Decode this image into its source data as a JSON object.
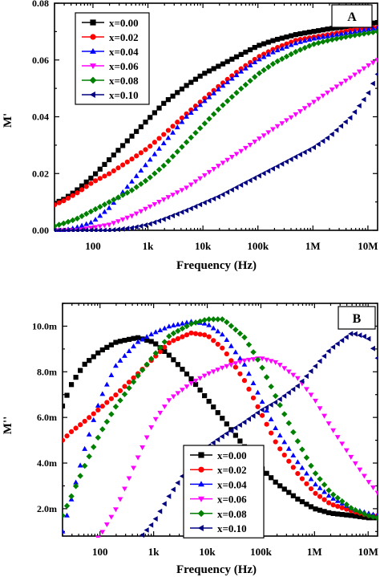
{
  "chart_data": [
    {
      "type": "line",
      "panel_label": "A",
      "xlabel": "Frequency (Hz)",
      "ylabel": "M'",
      "xscale": "log",
      "xlim": [
        20,
        15000000
      ],
      "ylim": [
        0,
        0.08
      ],
      "x_ticks": [
        {
          "v": 100,
          "label": "100"
        },
        {
          "v": 1000,
          "label": "1k"
        },
        {
          "v": 10000,
          "label": "10k"
        },
        {
          "v": 100000,
          "label": "100k"
        },
        {
          "v": 1000000,
          "label": "1M"
        },
        {
          "v": 10000000,
          "label": "10M"
        }
      ],
      "y_ticks": [
        {
          "v": 0,
          "label": "0.00"
        },
        {
          "v": 0.02,
          "label": "0.02"
        },
        {
          "v": 0.04,
          "label": "0.04"
        },
        {
          "v": 0.06,
          "label": "0.06"
        },
        {
          "v": 0.08,
          "label": "0.08"
        }
      ],
      "legend_position": "top-left",
      "series": [
        {
          "name": "x=0.00",
          "color": "#000000",
          "marker": "square",
          "x": [
            20,
            30,
            50,
            100,
            200,
            500,
            1000,
            2000,
            5000,
            10000,
            20000,
            50000,
            100000,
            200000,
            500000,
            1000000,
            2000000,
            5000000,
            10000000,
            15000000
          ],
          "y": [
            0.0095,
            0.011,
            0.014,
            0.019,
            0.025,
            0.033,
            0.039,
            0.045,
            0.051,
            0.055,
            0.058,
            0.062,
            0.065,
            0.067,
            0.069,
            0.07,
            0.071,
            0.072,
            0.0728,
            0.0732
          ]
        },
        {
          "name": "x=0.02",
          "color": "#ff0000",
          "marker": "circle",
          "x": [
            20,
            30,
            50,
            100,
            200,
            500,
            1000,
            2000,
            5000,
            10000,
            20000,
            50000,
            100000,
            200000,
            500000,
            1000000,
            2000000,
            5000000,
            10000000,
            15000000
          ],
          "y": [
            0.009,
            0.0105,
            0.013,
            0.017,
            0.02,
            0.025,
            0.029,
            0.034,
            0.041,
            0.046,
            0.051,
            0.057,
            0.061,
            0.064,
            0.067,
            0.068,
            0.069,
            0.0705,
            0.0712,
            0.0715
          ]
        },
        {
          "name": "x=0.04",
          "color": "#0000ff",
          "marker": "triangle-up",
          "x": [
            20,
            30,
            50,
            100,
            200,
            500,
            1000,
            2000,
            5000,
            10000,
            20000,
            50000,
            100000,
            200000,
            500000,
            1000000,
            2000000,
            5000000,
            10000000,
            15000000
          ],
          "y": [
            0.0,
            0.0,
            0.001,
            0.003,
            0.008,
            0.017,
            0.024,
            0.031,
            0.04,
            0.045,
            0.05,
            0.056,
            0.06,
            0.063,
            0.066,
            0.0675,
            0.0685,
            0.0698,
            0.0708,
            0.0712
          ]
        },
        {
          "name": "x=0.06",
          "color": "#ff00ff",
          "marker": "triangle-down",
          "x": [
            20,
            30,
            50,
            100,
            200,
            500,
            1000,
            2000,
            5000,
            10000,
            20000,
            50000,
            100000,
            200000,
            500000,
            1000000,
            2000000,
            5000000,
            10000000,
            15000000
          ],
          "y": [
            0.0,
            0.0,
            0.0,
            0.001,
            0.002,
            0.005,
            0.008,
            0.011,
            0.015,
            0.019,
            0.023,
            0.028,
            0.032,
            0.036,
            0.041,
            0.045,
            0.049,
            0.054,
            0.058,
            0.06
          ]
        },
        {
          "name": "x=0.08",
          "color": "#008000",
          "marker": "diamond",
          "x": [
            20,
            30,
            50,
            100,
            200,
            500,
            1000,
            2000,
            5000,
            10000,
            20000,
            50000,
            100000,
            200000,
            500000,
            1000000,
            2000000,
            5000000,
            10000000,
            15000000
          ],
          "y": [
            0.0015,
            0.0025,
            0.004,
            0.007,
            0.01,
            0.014,
            0.018,
            0.023,
            0.031,
            0.037,
            0.043,
            0.05,
            0.055,
            0.059,
            0.063,
            0.0655,
            0.067,
            0.0685,
            0.0695,
            0.07
          ]
        },
        {
          "name": "x=0.10",
          "color": "#000080",
          "marker": "triangle-left",
          "x": [
            20,
            50,
            100,
            200,
            500,
            1000,
            2000,
            5000,
            10000,
            20000,
            50000,
            100000,
            200000,
            500000,
            1000000,
            2000000,
            5000000,
            10000000,
            15000000
          ],
          "y": [
            0.0,
            0.0,
            0.0,
            0.0,
            0.0008,
            0.002,
            0.004,
            0.007,
            0.0095,
            0.012,
            0.016,
            0.019,
            0.022,
            0.026,
            0.029,
            0.033,
            0.04,
            0.048,
            0.055
          ]
        }
      ]
    },
    {
      "type": "line",
      "panel_label": "B",
      "xlabel": "Frequency (Hz)",
      "ylabel": "M''",
      "xscale": "log",
      "xlim": [
        20,
        15000000
      ],
      "ylim": [
        0.0008,
        0.011
      ],
      "x_ticks": [
        {
          "v": 100,
          "label": "100"
        },
        {
          "v": 1000,
          "label": "1k"
        },
        {
          "v": 10000,
          "label": "10k"
        },
        {
          "v": 100000,
          "label": "100k"
        },
        {
          "v": 1000000,
          "label": "1M"
        },
        {
          "v": 10000000,
          "label": "10M"
        }
      ],
      "y_ticks": [
        {
          "v": 0.002,
          "label": "2.0m"
        },
        {
          "v": 0.004,
          "label": "4.0m"
        },
        {
          "v": 0.006,
          "label": "6.0m"
        },
        {
          "v": 0.008,
          "label": "8.0m"
        },
        {
          "v": 0.01,
          "label": "10.0m"
        }
      ],
      "legend_position": "bottom-left",
      "series": [
        {
          "name": "x=0.00",
          "color": "#000000",
          "marker": "square",
          "x": [
            20,
            30,
            50,
            100,
            200,
            500,
            1000,
            2000,
            5000,
            10000,
            20000,
            50000,
            100000,
            200000,
            500000,
            1000000,
            2000000,
            5000000,
            10000000,
            15000000
          ],
          "y": [
            0.0065,
            0.0075,
            0.0083,
            0.0089,
            0.0093,
            0.0095,
            0.0093,
            0.0087,
            0.0077,
            0.0068,
            0.0059,
            0.0047,
            0.0038,
            0.0031,
            0.0024,
            0.002,
            0.0018,
            0.0017,
            0.0016,
            0.0016
          ]
        },
        {
          "name": "x=0.02",
          "color": "#ff0000",
          "marker": "circle",
          "x": [
            20,
            30,
            50,
            100,
            200,
            500,
            1000,
            2000,
            5000,
            10000,
            20000,
            50000,
            100000,
            200000,
            500000,
            1000000,
            2000000,
            5000000,
            10000000,
            15000000
          ],
          "y": [
            0.005,
            0.0054,
            0.0058,
            0.0064,
            0.007,
            0.0079,
            0.0086,
            0.0093,
            0.0097,
            0.0096,
            0.009,
            0.0076,
            0.0062,
            0.0048,
            0.0035,
            0.0027,
            0.0022,
            0.0019,
            0.0017,
            0.0017
          ]
        },
        {
          "name": "x=0.04",
          "color": "#0000ff",
          "marker": "triangle-up",
          "x": [
            20,
            30,
            50,
            100,
            200,
            500,
            1000,
            2000,
            5000,
            10000,
            20000,
            50000,
            100000,
            200000,
            500000,
            1000000,
            2000000,
            5000000,
            10000000,
            15000000
          ],
          "y": [
            0.001,
            0.0025,
            0.0045,
            0.0068,
            0.0083,
            0.0093,
            0.0097,
            0.01,
            0.0102,
            0.0101,
            0.0096,
            0.0083,
            0.0068,
            0.0054,
            0.004,
            0.0031,
            0.0025,
            0.002,
            0.0018,
            0.0017
          ]
        },
        {
          "name": "x=0.06",
          "color": "#ff00ff",
          "marker": "triangle-down",
          "x": [
            20,
            50,
            100,
            200,
            500,
            1000,
            2000,
            5000,
            10000,
            20000,
            50000,
            100000,
            200000,
            500000,
            1000000,
            2000000,
            5000000,
            10000000,
            15000000
          ],
          "y": [
            0.0001,
            0.0002,
            0.0008,
            0.002,
            0.0042,
            0.0058,
            0.0068,
            0.0075,
            0.0079,
            0.0082,
            0.0085,
            0.0086,
            0.0084,
            0.0077,
            0.0068,
            0.0056,
            0.0042,
            0.0032,
            0.0027
          ]
        },
        {
          "name": "x=0.08",
          "color": "#008000",
          "marker": "diamond",
          "x": [
            20,
            30,
            50,
            100,
            200,
            500,
            1000,
            2000,
            5000,
            10000,
            20000,
            50000,
            100000,
            200000,
            500000,
            1000000,
            2000000,
            5000000,
            10000000,
            15000000
          ],
          "y": [
            0.0017,
            0.0026,
            0.0038,
            0.0053,
            0.0065,
            0.0078,
            0.0087,
            0.0096,
            0.0101,
            0.0103,
            0.0103,
            0.0095,
            0.0083,
            0.0068,
            0.0049,
            0.0036,
            0.0027,
            0.002,
            0.0017,
            0.0016
          ]
        },
        {
          "name": "x=0.10",
          "color": "#000080",
          "marker": "triangle-left",
          "x": [
            20,
            50,
            100,
            200,
            500,
            1000,
            2000,
            5000,
            10000,
            20000,
            50000,
            100000,
            200000,
            500000,
            1000000,
            2000000,
            5000000,
            10000000,
            15000000
          ],
          "y": [
            0.0001,
            0.0001,
            0.0001,
            0.0002,
            0.0006,
            0.0014,
            0.0026,
            0.004,
            0.0047,
            0.0052,
            0.0058,
            0.0063,
            0.0067,
            0.0074,
            0.0082,
            0.009,
            0.0097,
            0.0095,
            0.0086
          ]
        }
      ]
    }
  ]
}
